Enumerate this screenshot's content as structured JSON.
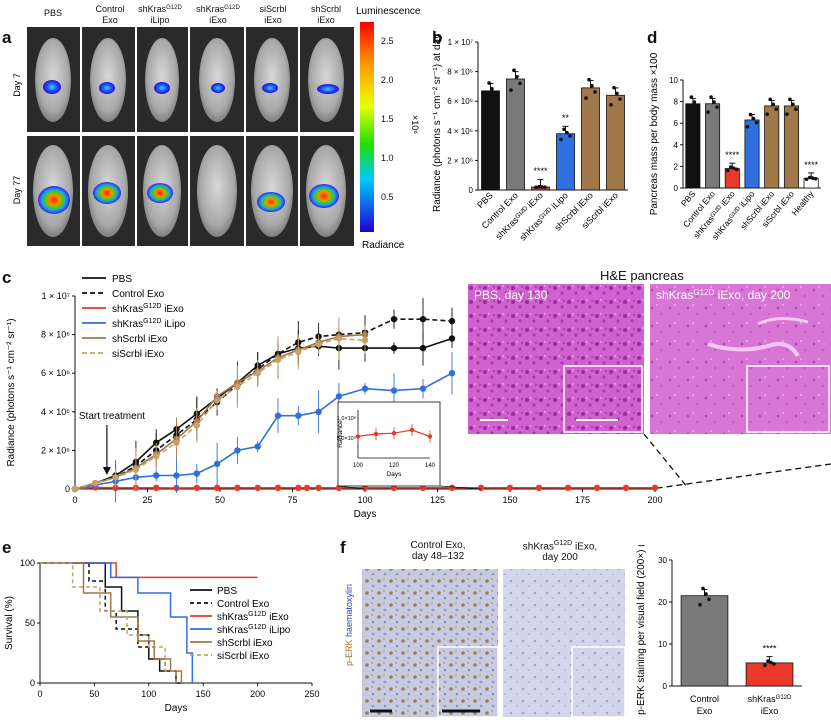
{
  "panel_labels": {
    "a": "a",
    "b": "b",
    "c": "c",
    "d": "d",
    "e": "e",
    "f": "f"
  },
  "colors": {
    "black": "#111111",
    "grey": "#7a7a7a",
    "red": "#e8392a",
    "blue": "#2f6fe0",
    "brown": "#a0784a",
    "light_brown": "#c8a068",
    "he_pink": "#d36ad0",
    "ihc_bg": "#c9cde0"
  },
  "panel_a": {
    "column_labels": [
      "PBS",
      "Control\nExo",
      "shKrasᴳ¹²ᴰ\niLipo",
      "shKrasᴳ¹²ᴰ\niExo",
      "siScrbl\niExo",
      "shScrbl\niExo"
    ],
    "column_labels_plain": [
      {
        "l1": "PBS",
        "l2": ""
      },
      {
        "l1": "Control",
        "l2": "Exo"
      },
      {
        "l1": "shKras",
        "sup": "G12D",
        "l2": "iLipo"
      },
      {
        "l1": "shKras",
        "sup": "G12D",
        "l2": "iExo"
      },
      {
        "l1": "siScrbl",
        "l2": "iExo"
      },
      {
        "l1": "shScrbl",
        "l2": "iExo"
      }
    ],
    "row_labels": [
      "Day 7",
      "Day 77"
    ],
    "colorbar_title": "Luminescence",
    "colorbar_bottom": "Radiance",
    "colorbar_unit": "×10⁶",
    "colorbar_ticks": [
      "2.5",
      "2.0",
      "1.5",
      "1.0",
      "0.5"
    ]
  },
  "chart_data": [
    {
      "panel": "b",
      "type": "bar",
      "ylabel": "Radiance (photons s⁻¹ cm⁻² sr⁻¹) at day 77",
      "ylim": [
        0,
        10000000
      ],
      "yticks": [
        "0",
        "2 × 10⁶",
        "4 × 10⁶",
        "6 × 10⁶",
        "8 × 10⁶",
        "1 × 10⁷"
      ],
      "categories": [
        "PBS",
        "Control Exo",
        "shKrasᴳ¹²ᴰ iExo",
        "shKrasᴳ¹²ᴰ iLipo",
        "shScrbl iExo",
        "siScrbl iExo"
      ],
      "values": [
        6700000,
        7500000,
        200000,
        3800000,
        6900000,
        6400000
      ],
      "bar_colors": [
        "#111111",
        "#7a7a7a",
        "#e8392a",
        "#2f6fe0",
        "#a0784a",
        "#a0784a"
      ],
      "annotations": [
        {
          "category_index": 2,
          "text": "****"
        },
        {
          "category_index": 3,
          "text": "**"
        }
      ]
    },
    {
      "panel": "d",
      "type": "bar",
      "ylabel": "Pancreas mass per body mass ×100",
      "ylim": [
        0,
        10
      ],
      "yticks": [
        "0",
        "2",
        "4",
        "6",
        "8",
        "10"
      ],
      "categories": [
        "PBS",
        "Control Exo",
        "shKrasᴳ¹²ᴰ iExo",
        "shKrasᴳ¹²ᴰ iLipo",
        "shScrbl iExo",
        "siScrbl iExo",
        "Healthy"
      ],
      "values": [
        7.8,
        7.8,
        1.8,
        6.3,
        7.6,
        7.6,
        0.9
      ],
      "bar_colors": [
        "#111111",
        "#7a7a7a",
        "#e8392a",
        "#2f6fe0",
        "#a0784a",
        "#a0784a",
        "#ffffff"
      ],
      "annotations": [
        {
          "category_index": 2,
          "text": "****"
        },
        {
          "category_index": 6,
          "text": "****"
        }
      ]
    },
    {
      "panel": "c",
      "type": "line",
      "xlabel": "Days",
      "ylabel": "Radiance (photons s⁻¹ cm⁻² sr⁻¹)",
      "xlim": [
        0,
        200
      ],
      "ylim": [
        0,
        10000000
      ],
      "xticks": [
        "0",
        "25",
        "50",
        "75",
        "100",
        "125",
        "150",
        "175",
        "200"
      ],
      "yticks": [
        "0",
        "2 × 10⁶",
        "4 × 10⁶",
        "6 × 10⁶",
        "8 × 10⁶",
        "1 × 10⁷"
      ],
      "annotation": "Start treatment",
      "annotation_x": 11,
      "series": [
        {
          "name": "PBS",
          "color": "#111111",
          "dash": false,
          "x": [
            0,
            7,
            14,
            21,
            28,
            35,
            42,
            49,
            56,
            63,
            70,
            77,
            84,
            91,
            100,
            110,
            120,
            130
          ],
          "y": [
            0,
            300000,
            700000,
            1400000,
            2400000,
            3100000,
            3900000,
            4700000,
            5500000,
            6400000,
            7000000,
            7300000,
            7400000,
            7300000,
            7300000,
            7300000,
            7300000,
            7800000
          ]
        },
        {
          "name": "Control Exo",
          "color": "#111111",
          "dash": true,
          "x": [
            0,
            7,
            14,
            21,
            28,
            35,
            42,
            49,
            56,
            63,
            70,
            77,
            84,
            91,
            100,
            110,
            120,
            130
          ],
          "y": [
            0,
            300000,
            600000,
            1200000,
            2000000,
            2800000,
            3600000,
            4500000,
            5400000,
            6200000,
            7000000,
            7600000,
            7900000,
            8000000,
            8100000,
            8800000,
            8800000,
            8700000
          ]
        },
        {
          "name": "shKrasᴳ¹²ᴰ iExo",
          "color": "#e8392a",
          "dash": false,
          "x": [
            0,
            7,
            14,
            21,
            28,
            35,
            42,
            49,
            56,
            63,
            70,
            77,
            80,
            84,
            91,
            100,
            110,
            120,
            130,
            140,
            150,
            160,
            170,
            180,
            190,
            200
          ],
          "y": [
            0,
            80000,
            60000,
            60000,
            60000,
            50000,
            60000,
            60000,
            60000,
            60000,
            60000,
            60000,
            60000,
            60000,
            60000,
            60000,
            60000,
            60000,
            60000,
            60000,
            60000,
            60000,
            60000,
            60000,
            60000,
            60000
          ]
        },
        {
          "name": "shKrasᴳ¹²ᴰ iLipo",
          "color": "#2f6fe0",
          "dash": false,
          "x": [
            0,
            7,
            14,
            21,
            28,
            35,
            42,
            49,
            56,
            63,
            70,
            77,
            84,
            91,
            100,
            110,
            120,
            130
          ],
          "y": [
            0,
            200000,
            400000,
            600000,
            700000,
            700000,
            800000,
            1300000,
            2000000,
            2200000,
            3800000,
            3800000,
            4000000,
            4800000,
            5200000,
            5100000,
            5200000,
            6000000
          ]
        },
        {
          "name": "shScrbl iExo",
          "color": "#a0784a",
          "dash": false,
          "x": [
            0,
            7,
            14,
            21,
            28,
            35,
            42,
            49,
            56,
            63,
            70,
            77,
            84,
            91,
            100
          ],
          "y": [
            0,
            300000,
            600000,
            1100000,
            1800000,
            2600000,
            3500000,
            4800000,
            5500000,
            6100000,
            6800000,
            7200000,
            7600000,
            7900000,
            8000000
          ]
        },
        {
          "name": "siScrbl iExo",
          "color": "#c8a068",
          "dash": true,
          "x": [
            0,
            7,
            14,
            21,
            28,
            35,
            42,
            49,
            56,
            63,
            70,
            77,
            84,
            91,
            100
          ],
          "y": [
            0,
            300000,
            600000,
            1000000,
            1700000,
            2400000,
            3300000,
            4600000,
            5300000,
            6000000,
            6700000,
            7100000,
            7500000,
            7800000,
            7700000
          ]
        }
      ],
      "inset": {
        "xlabel": "Days",
        "ylabel": "Radiance",
        "xticks": [
          "100",
          "120",
          "140"
        ],
        "yticks": [
          "5.0×10⁵",
          "1.0×10⁶"
        ],
        "x": [
          100,
          110,
          120,
          130,
          140
        ],
        "y": [
          540000,
          600000,
          620000,
          700000,
          540000
        ]
      }
    },
    {
      "panel": "e",
      "type": "line",
      "subtype": "survival-step",
      "xlabel": "Days",
      "ylabel": "Survival (%)",
      "xlim": [
        0,
        250
      ],
      "ylim": [
        0,
        100
      ],
      "xticks": [
        "0",
        "50",
        "100",
        "150",
        "200",
        "250"
      ],
      "yticks": [
        "0",
        "50",
        "100"
      ],
      "series": [
        {
          "name": "PBS",
          "color": "#111111",
          "dash": false,
          "x": [
            0,
            60,
            75,
            90,
            100,
            110,
            125,
            130
          ],
          "y": [
            100,
            80,
            60,
            40,
            20,
            10,
            0,
            0
          ]
        },
        {
          "name": "Control Exo",
          "color": "#111111",
          "dash": true,
          "x": [
            0,
            45,
            60,
            70,
            90,
            105,
            115,
            125
          ],
          "y": [
            100,
            85,
            60,
            45,
            30,
            20,
            10,
            0
          ]
        },
        {
          "name": "shKrasᴳ¹²ᴰ iExo",
          "color": "#e8392a",
          "dash": false,
          "x": [
            0,
            55,
            70,
            200
          ],
          "y": [
            100,
            100,
            88,
            88
          ]
        },
        {
          "name": "shKrasᴳ¹²ᴰ iLipo",
          "color": "#2f6fe0",
          "dash": false,
          "x": [
            0,
            65,
            90,
            120,
            135,
            140
          ],
          "y": [
            100,
            88,
            75,
            55,
            25,
            0
          ]
        },
        {
          "name": "shScrbl iExo",
          "color": "#a0784a",
          "dash": false,
          "x": [
            0,
            40,
            65,
            90,
            105,
            120,
            130
          ],
          "y": [
            100,
            75,
            55,
            35,
            20,
            10,
            0
          ]
        },
        {
          "name": "siScrbl iExo",
          "color": "#c8a068",
          "dash": true,
          "x": [
            0,
            30,
            55,
            80,
            100,
            115,
            125
          ],
          "y": [
            100,
            80,
            60,
            40,
            30,
            10,
            0
          ]
        }
      ]
    },
    {
      "panel": "f",
      "type": "bar",
      "ylabel": "p-ERK staining per visual field (200×) (%)",
      "ylim": [
        0,
        30
      ],
      "yticks": [
        "0",
        "10",
        "20",
        "30"
      ],
      "categories": [
        "Control Exo",
        "shKrasᴳ¹²ᴰ iExo"
      ],
      "values": [
        21.5,
        5.5
      ],
      "bar_colors": [
        "#7a7a7a",
        "#e8392a"
      ],
      "annotations": [
        {
          "category_index": 1,
          "text": "****"
        }
      ]
    }
  ],
  "panel_c_images": {
    "title": "H&E pancreas",
    "left_label": "PBS, day 130",
    "right_label_pre": "shKras",
    "right_label_sup": "G12D",
    "right_label_post": " iExo, day 200"
  },
  "legend_c": [
    {
      "label": "PBS",
      "sup": ""
    },
    {
      "label": "Control Exo",
      "sup": ""
    },
    {
      "label": "shKras",
      "sup": "G12D",
      "post": " iExo"
    },
    {
      "label": "shKras",
      "sup": "G12D",
      "post": " iLipo"
    },
    {
      "label": "shScrbl iExo",
      "sup": ""
    },
    {
      "label": "siScrbl iExo",
      "sup": ""
    }
  ],
  "panel_f_images": {
    "left_title_1": "Control Exo,",
    "left_title_2": "day 48–132",
    "right_title_1_pre": "shKras",
    "right_title_1_sup": "G12D",
    "right_title_1_post": " iExo,",
    "right_title_2": "day 200",
    "side_label_1": "p-ERK",
    "side_label_2": " haematoxylin"
  },
  "panel_f_xlabels": [
    {
      "l1": "Control",
      "l2": "Exo"
    },
    {
      "l1": "shKras",
      "sup": "G12D",
      "l2": "iExo"
    }
  ]
}
